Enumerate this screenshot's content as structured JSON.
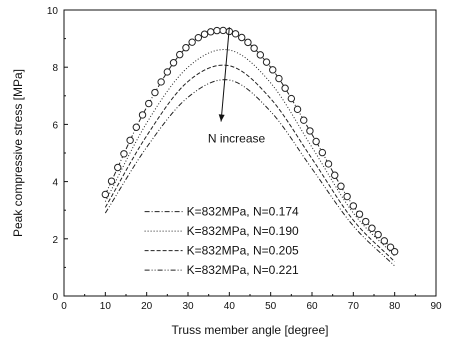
{
  "chart_data": {
    "type": "line",
    "title": "",
    "xlabel": "Truss member angle [degree]",
    "ylabel": "Peak compressive stress [MPa]",
    "xlim": [
      0,
      90
    ],
    "ylim": [
      0,
      10
    ],
    "xticks": [
      0,
      10,
      20,
      30,
      40,
      50,
      60,
      70,
      80,
      90
    ],
    "yticks": [
      0,
      2,
      4,
      6,
      8,
      10
    ],
    "grid": false,
    "legend_position": "bottom-center",
    "annotation": {
      "text": "N increase",
      "arrow_from": [
        40,
        9.4
      ],
      "arrow_to": [
        38,
        6.1
      ]
    },
    "x": [
      10,
      20,
      30,
      40,
      50,
      60,
      70,
      80
    ],
    "series": [
      {
        "name": "K=832MPa, N=0.174",
        "style": "dash-dot",
        "markers": "circle",
        "values": [
          3.55,
          6.6,
          8.75,
          9.25,
          8.0,
          5.65,
          3.15,
          1.55
        ]
      },
      {
        "name": "K=832MPa, N=0.190",
        "style": "dotted",
        "values": [
          3.3,
          6.05,
          8.0,
          8.6,
          7.45,
          5.2,
          2.9,
          1.4
        ]
      },
      {
        "name": "K=832MPa, N=0.205",
        "style": "dashed",
        "values": [
          3.1,
          5.6,
          7.5,
          8.05,
          6.9,
          4.8,
          2.65,
          1.2
        ]
      },
      {
        "name": "K=832MPa, N=0.221",
        "style": "dash-dot-dot",
        "values": [
          2.9,
          5.2,
          6.95,
          7.55,
          6.45,
          4.45,
          2.45,
          1.05
        ]
      }
    ],
    "circle_markers_x": [
      10,
      11.5,
      13,
      14.5,
      16,
      17.5,
      19,
      20.5,
      22,
      23.5,
      25,
      26.5,
      28,
      29.5,
      31,
      32.5,
      34,
      35.5,
      37,
      38.5,
      40,
      41.5,
      43,
      44.5,
      46,
      47.5,
      49,
      50.5,
      52,
      53.5,
      55,
      56.5,
      58,
      59.5,
      61,
      62.5,
      64,
      65.5,
      67,
      68.5,
      70,
      71.5,
      73,
      74.5,
      76,
      77.5,
      79,
      80
    ]
  }
}
